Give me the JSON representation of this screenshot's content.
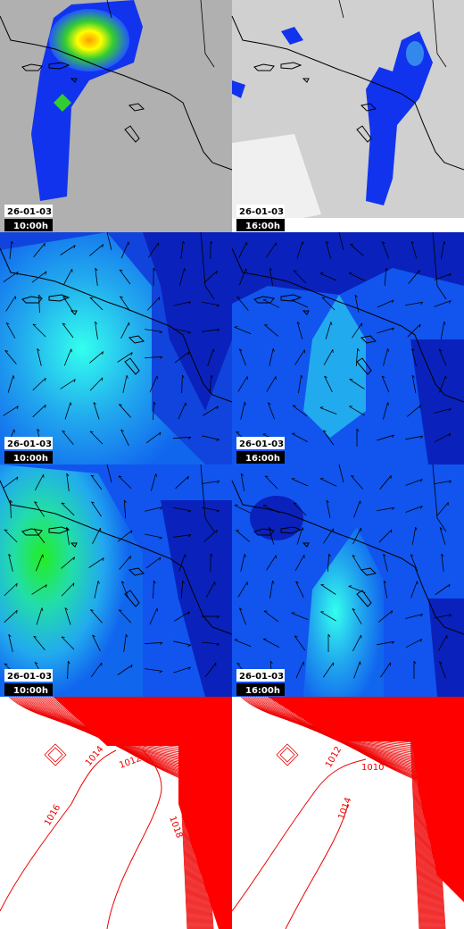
{
  "panels": [
    {
      "date": "26-01-03",
      "time": "10:00h"
    },
    {
      "date": "26-01-03",
      "time": "16:00h"
    },
    {
      "date": "26-01-03",
      "time": "10:00h"
    },
    {
      "date": "26-01-03",
      "time": "16:00h"
    },
    {
      "date": "26-01-03",
      "time": "10:00h"
    },
    {
      "date": "26-01-03",
      "time": "16:00h"
    }
  ],
  "contour_panels": [
    {
      "labels": [
        "1014",
        "1012",
        "1016",
        "1018"
      ]
    },
    {
      "labels": [
        "1012",
        "1010",
        "1014"
      ]
    }
  ]
}
